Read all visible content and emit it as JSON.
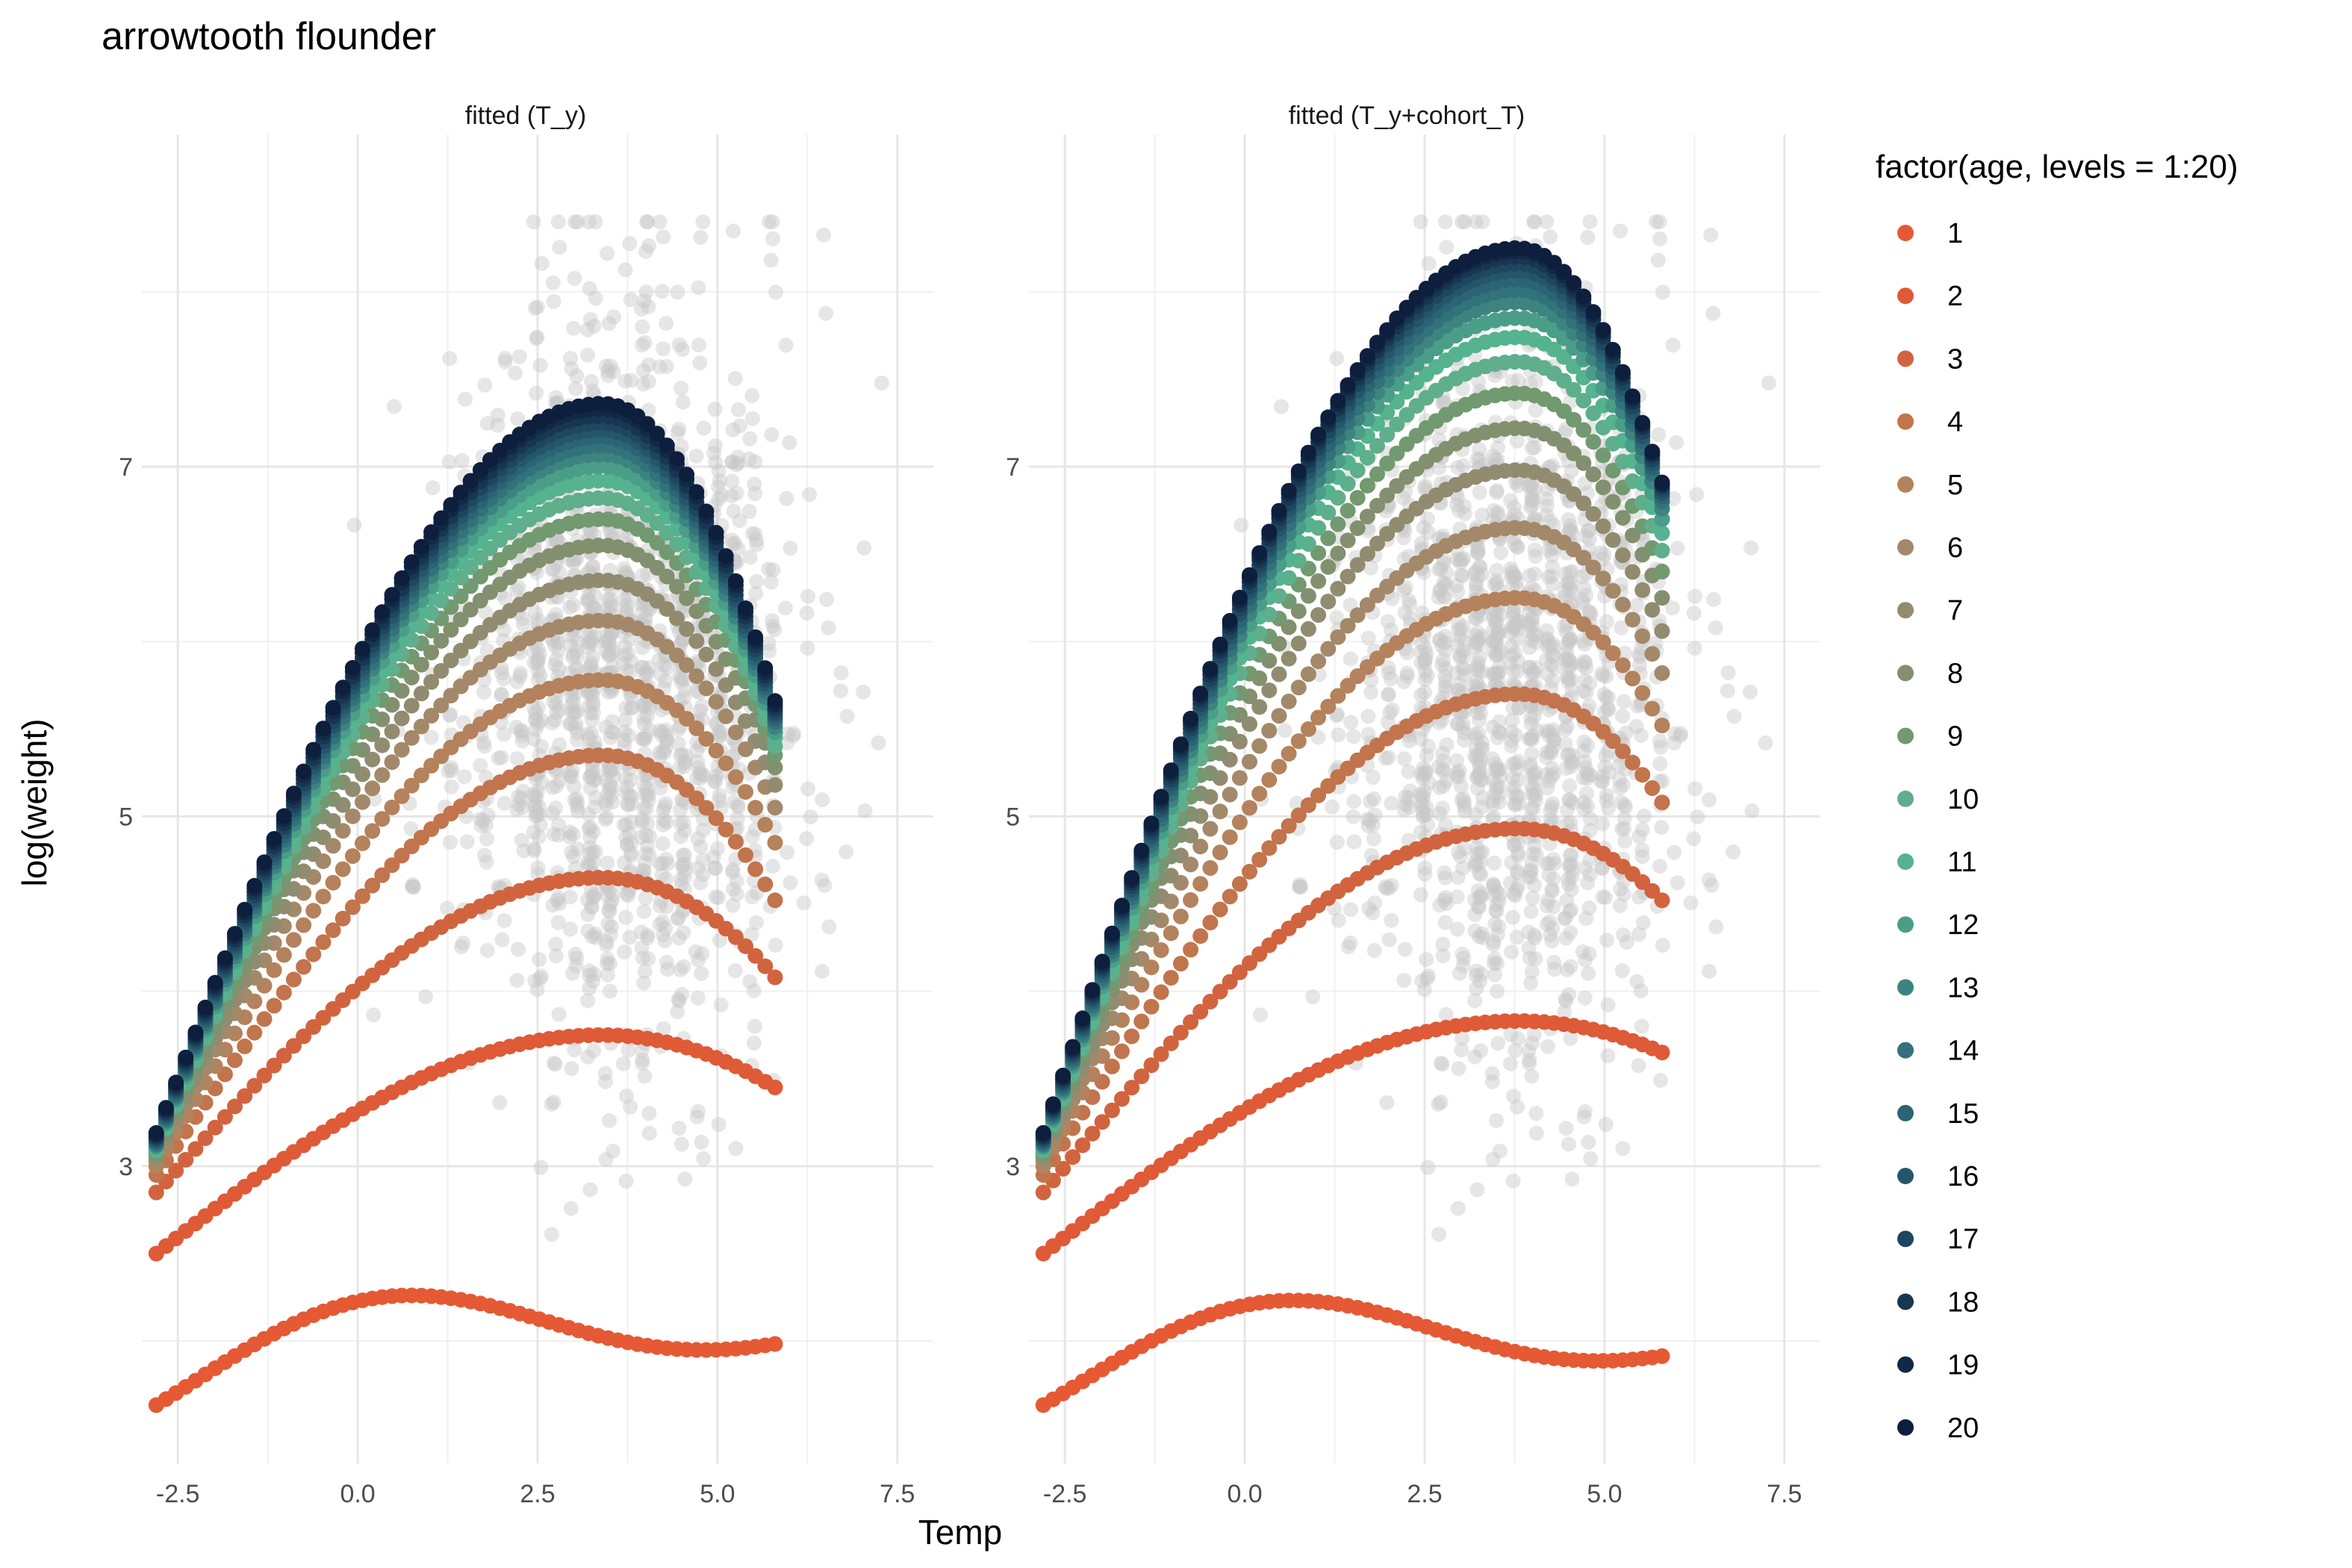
{
  "chart_data": {
    "type": "scatter",
    "title": "arrowtooth flounder",
    "xlabel": "Temp",
    "ylabel": "log(weight)",
    "xlim": [
      -3.0,
      8.0
    ],
    "ylim": [
      1.3,
      8.9
    ],
    "x_ticks": [
      -2.5,
      0.0,
      2.5,
      5.0,
      7.5
    ],
    "x_tick_labels": [
      "-2.5",
      "0.0",
      "2.5",
      "5.0",
      "7.5"
    ],
    "y_ticks": [
      3,
      5,
      7
    ],
    "y_tick_labels": [
      "3",
      "5",
      "7"
    ],
    "grid": true,
    "legend_position": "right",
    "legend": {
      "title": "factor(age, levels = 1:20)",
      "labels": [
        "1",
        "2",
        "3",
        "4",
        "5",
        "6",
        "7",
        "8",
        "9",
        "10",
        "11",
        "12",
        "13",
        "14",
        "15",
        "16",
        "17",
        "18",
        "19",
        "20"
      ],
      "colors": [
        "#e55934",
        "#df5a36",
        "#d1643f",
        "#c2744d",
        "#b4825c",
        "#a3896a",
        "#918c70",
        "#83906f",
        "#72996f",
        "#5fae8c",
        "#55b38f",
        "#4a9e87",
        "#3d8481",
        "#32727a",
        "#2b6475",
        "#245669",
        "#1d475f",
        "#173652",
        "#122946",
        "#0e1e3d"
      ]
    },
    "background_points": {
      "series": "observed",
      "color": "#c7c7c7",
      "x_range": [
        -1.0,
        7.6
      ],
      "y_range": [
        1.85,
        8.4
      ],
      "approx_center": {
        "x": 3.7,
        "y": 5.8
      },
      "description_hidden": true
    },
    "panels": [
      {
        "strip": "fitted (T_y)",
        "x_range": [
          -2.8,
          5.8
        ],
        "n_points": 64,
        "age_curves": [
          {
            "age": 1,
            "y_start": 1.72,
            "wave": 0.2,
            "y_end": 2.07
          },
          {
            "age": 2,
            "y_start": 2.5,
            "peak_x": 3.4,
            "peak_y": 3.75,
            "y_end": 3.45
          },
          {
            "age": 3,
            "y_start": 2.85,
            "peak_x": 3.4,
            "peak_y": 4.65,
            "y_end": 4.08
          },
          {
            "age": 4,
            "y_start": 2.95,
            "peak_x": 3.4,
            "peak_y": 5.35,
            "y_end": 4.52
          },
          {
            "age": 5,
            "y_start": 3.0,
            "peak_x": 3.4,
            "peak_y": 5.78,
            "y_end": 4.85
          },
          {
            "age": 6,
            "y_start": 3.03,
            "peak_x": 3.4,
            "peak_y": 6.12,
            "y_end": 5.05
          },
          {
            "age": 7,
            "y_start": 3.05,
            "peak_x": 3.4,
            "peak_y": 6.35,
            "y_end": 5.18
          },
          {
            "age": 8,
            "y_start": 3.07,
            "peak_x": 3.4,
            "peak_y": 6.55,
            "y_end": 5.28
          },
          {
            "age": 9,
            "y_start": 3.08,
            "peak_x": 3.4,
            "peak_y": 6.7,
            "y_end": 5.35
          },
          {
            "age": 10,
            "y_start": 3.09,
            "peak_x": 3.4,
            "peak_y": 6.82,
            "y_end": 5.4
          },
          {
            "age": 11,
            "y_start": 3.1,
            "peak_x": 3.4,
            "peak_y": 6.92,
            "y_end": 5.45
          },
          {
            "age": 12,
            "y_start": 3.11,
            "peak_x": 3.4,
            "peak_y": 7.0,
            "y_end": 5.48
          },
          {
            "age": 13,
            "y_start": 3.12,
            "peak_x": 3.4,
            "peak_y": 7.07,
            "y_end": 5.51
          },
          {
            "age": 14,
            "y_start": 3.13,
            "peak_x": 3.4,
            "peak_y": 7.12,
            "y_end": 5.54
          },
          {
            "age": 15,
            "y_start": 3.14,
            "peak_x": 3.4,
            "peak_y": 7.17,
            "y_end": 5.56
          },
          {
            "age": 16,
            "y_start": 3.15,
            "peak_x": 3.4,
            "peak_y": 7.21,
            "y_end": 5.58
          },
          {
            "age": 17,
            "y_start": 3.16,
            "peak_x": 3.4,
            "peak_y": 7.25,
            "y_end": 5.6
          },
          {
            "age": 18,
            "y_start": 3.17,
            "peak_x": 3.4,
            "peak_y": 7.29,
            "y_end": 5.62
          },
          {
            "age": 19,
            "y_start": 3.18,
            "peak_x": 3.4,
            "peak_y": 7.33,
            "y_end": 5.64
          },
          {
            "age": 20,
            "y_start": 3.19,
            "peak_x": 3.4,
            "peak_y": 7.36,
            "y_end": 5.66
          }
        ]
      },
      {
        "strip": "fitted (T_y+cohort_T)",
        "x_range": [
          -2.8,
          5.8
        ],
        "n_points": 64,
        "age_curves": [
          {
            "age": 1,
            "y_start": 1.72,
            "wave": 0.2,
            "y_end": 2.0
          },
          {
            "age": 2,
            "y_start": 2.5,
            "peak_x": 3.8,
            "peak_y": 3.83,
            "y_end": 3.65
          },
          {
            "age": 3,
            "y_start": 2.85,
            "peak_x": 3.8,
            "peak_y": 4.93,
            "y_end": 4.52
          },
          {
            "age": 4,
            "y_start": 2.95,
            "peak_x": 3.8,
            "peak_y": 5.7,
            "y_end": 5.08
          },
          {
            "age": 5,
            "y_start": 3.0,
            "peak_x": 3.8,
            "peak_y": 6.25,
            "y_end": 5.52
          },
          {
            "age": 6,
            "y_start": 3.03,
            "peak_x": 3.8,
            "peak_y": 6.65,
            "y_end": 5.82
          },
          {
            "age": 7,
            "y_start": 3.05,
            "peak_x": 3.8,
            "peak_y": 6.98,
            "y_end": 6.06
          },
          {
            "age": 8,
            "y_start": 3.07,
            "peak_x": 3.8,
            "peak_y": 7.22,
            "y_end": 6.25
          },
          {
            "age": 9,
            "y_start": 3.08,
            "peak_x": 3.8,
            "peak_y": 7.42,
            "y_end": 6.4
          },
          {
            "age": 10,
            "y_start": 3.09,
            "peak_x": 3.8,
            "peak_y": 7.6,
            "y_end": 6.52
          },
          {
            "age": 11,
            "y_start": 3.1,
            "peak_x": 3.8,
            "peak_y": 7.74,
            "y_end": 6.62
          },
          {
            "age": 12,
            "y_start": 3.11,
            "peak_x": 3.8,
            "peak_y": 7.85,
            "y_end": 6.7
          },
          {
            "age": 13,
            "y_start": 3.12,
            "peak_x": 3.8,
            "peak_y": 7.94,
            "y_end": 6.76
          },
          {
            "age": 14,
            "y_start": 3.13,
            "peak_x": 3.8,
            "peak_y": 8.01,
            "y_end": 6.8
          },
          {
            "age": 15,
            "y_start": 3.14,
            "peak_x": 3.8,
            "peak_y": 8.07,
            "y_end": 6.83
          },
          {
            "age": 16,
            "y_start": 3.15,
            "peak_x": 3.8,
            "peak_y": 8.12,
            "y_end": 6.85
          },
          {
            "age": 17,
            "y_start": 3.16,
            "peak_x": 3.8,
            "peak_y": 8.16,
            "y_end": 6.87
          },
          {
            "age": 18,
            "y_start": 3.17,
            "peak_x": 3.8,
            "peak_y": 8.2,
            "y_end": 6.89
          },
          {
            "age": 19,
            "y_start": 3.18,
            "peak_x": 3.8,
            "peak_y": 8.23,
            "y_end": 6.9
          },
          {
            "age": 20,
            "y_start": 3.19,
            "peak_x": 3.8,
            "peak_y": 8.25,
            "y_end": 6.91
          }
        ]
      }
    ]
  }
}
